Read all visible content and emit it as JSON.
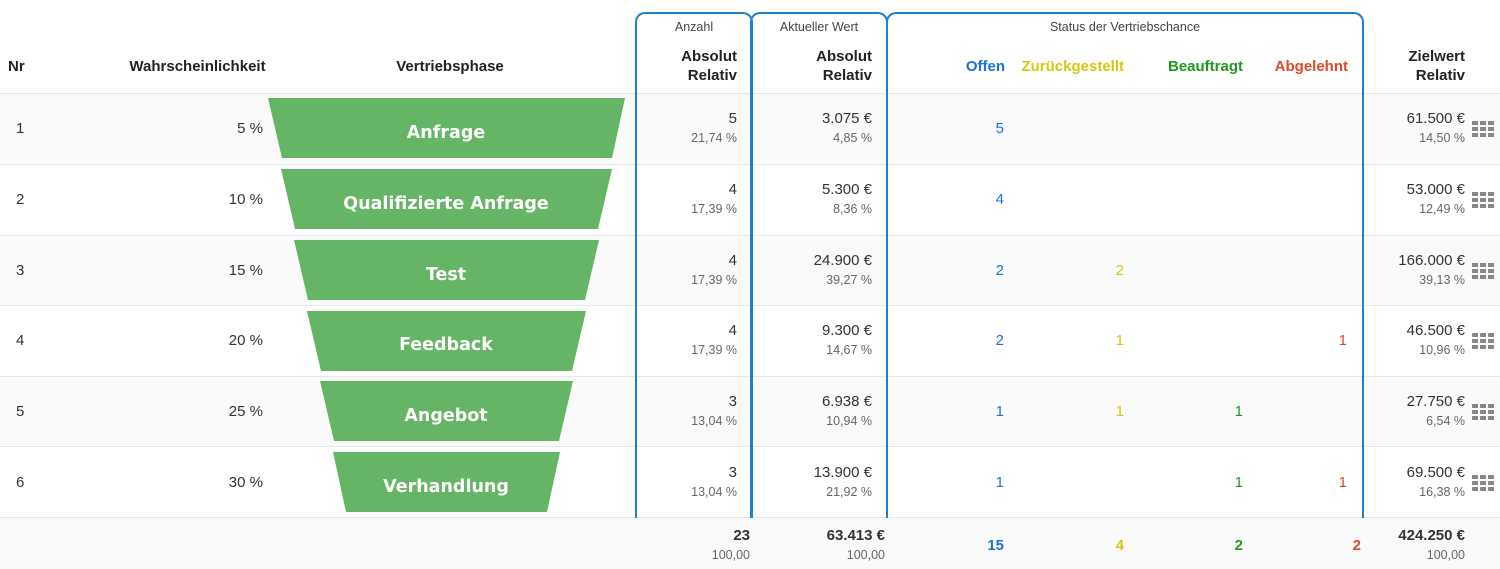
{
  "colors": {
    "funnel": "#66b566",
    "offen": "#1c72d4",
    "zurueckgestellt": "#d9c70f",
    "beauftragt": "#1f9a1f",
    "abgelehnt": "#e0482a",
    "group_border": "#1e7fcf"
  },
  "groups": {
    "anzahl": "Anzahl",
    "aktueller_wert": "Aktueller Wert",
    "status": "Status der Vertriebschance"
  },
  "headers": {
    "nr": "Nr",
    "wahrscheinlichkeit": "Wahrscheinlichkeit",
    "vertriebsphase": "Vertriebsphase",
    "anzahl_abs": "Absolut",
    "anzahl_rel": "Relativ",
    "wert_abs": "Absolut",
    "wert_rel": "Relativ",
    "offen": "Offen",
    "zurueckgestellt": "Zurückgestellt",
    "beauftragt": "Beauftragt",
    "abgelehnt": "Abgelehnt",
    "ziel_abs": "Zielwert",
    "ziel_rel": "Relativ"
  },
  "rows": [
    {
      "nr": "1",
      "prob": "5 %",
      "phase": "Anfrage",
      "anzahl": "5",
      "anzahl_rel": "21,74 %",
      "wert": "3.075 €",
      "wert_rel": "4,85 %",
      "offen": "5",
      "zurueck": "",
      "beauftragt": "",
      "abgelehnt": "",
      "ziel": "61.500 €",
      "ziel_rel": "14,50 %"
    },
    {
      "nr": "2",
      "prob": "10 %",
      "phase": "Qualifizierte Anfrage",
      "anzahl": "4",
      "anzahl_rel": "17,39 %",
      "wert": "5.300 €",
      "wert_rel": "8,36 %",
      "offen": "4",
      "zurueck": "",
      "beauftragt": "",
      "abgelehnt": "",
      "ziel": "53.000 €",
      "ziel_rel": "12,49 %"
    },
    {
      "nr": "3",
      "prob": "15 %",
      "phase": "Test",
      "anzahl": "4",
      "anzahl_rel": "17,39 %",
      "wert": "24.900 €",
      "wert_rel": "39,27 %",
      "offen": "2",
      "zurueck": "2",
      "beauftragt": "",
      "abgelehnt": "",
      "ziel": "166.000 €",
      "ziel_rel": "39,13 %"
    },
    {
      "nr": "4",
      "prob": "20 %",
      "phase": "Feedback",
      "anzahl": "4",
      "anzahl_rel": "17,39 %",
      "wert": "9.300 €",
      "wert_rel": "14,67 %",
      "offen": "2",
      "zurueck": "1",
      "beauftragt": "",
      "abgelehnt": "1",
      "ziel": "46.500 €",
      "ziel_rel": "10,96 %"
    },
    {
      "nr": "5",
      "prob": "25 %",
      "phase": "Angebot",
      "anzahl": "3",
      "anzahl_rel": "13,04 %",
      "wert": "6.938 €",
      "wert_rel": "10,94 %",
      "offen": "1",
      "zurueck": "1",
      "beauftragt": "1",
      "abgelehnt": "",
      "ziel": "27.750 €",
      "ziel_rel": "6,54 %"
    },
    {
      "nr": "6",
      "prob": "30 %",
      "phase": "Verhandlung",
      "anzahl": "3",
      "anzahl_rel": "13,04 %",
      "wert": "13.900 €",
      "wert_rel": "21,92 %",
      "offen": "1",
      "zurueck": "",
      "beauftragt": "1",
      "abgelehnt": "1",
      "ziel": "69.500 €",
      "ziel_rel": "16,38 %"
    }
  ],
  "totals": {
    "anzahl": "23",
    "anzahl_rel": "100,00",
    "wert": "63.413 €",
    "wert_rel": "100,00",
    "offen": "15",
    "zurueck": "4",
    "beauftragt": "2",
    "abgelehnt": "2",
    "ziel": "424.250 €",
    "ziel_rel": "100,00"
  },
  "icons": {
    "row_action": "grid-icon"
  }
}
